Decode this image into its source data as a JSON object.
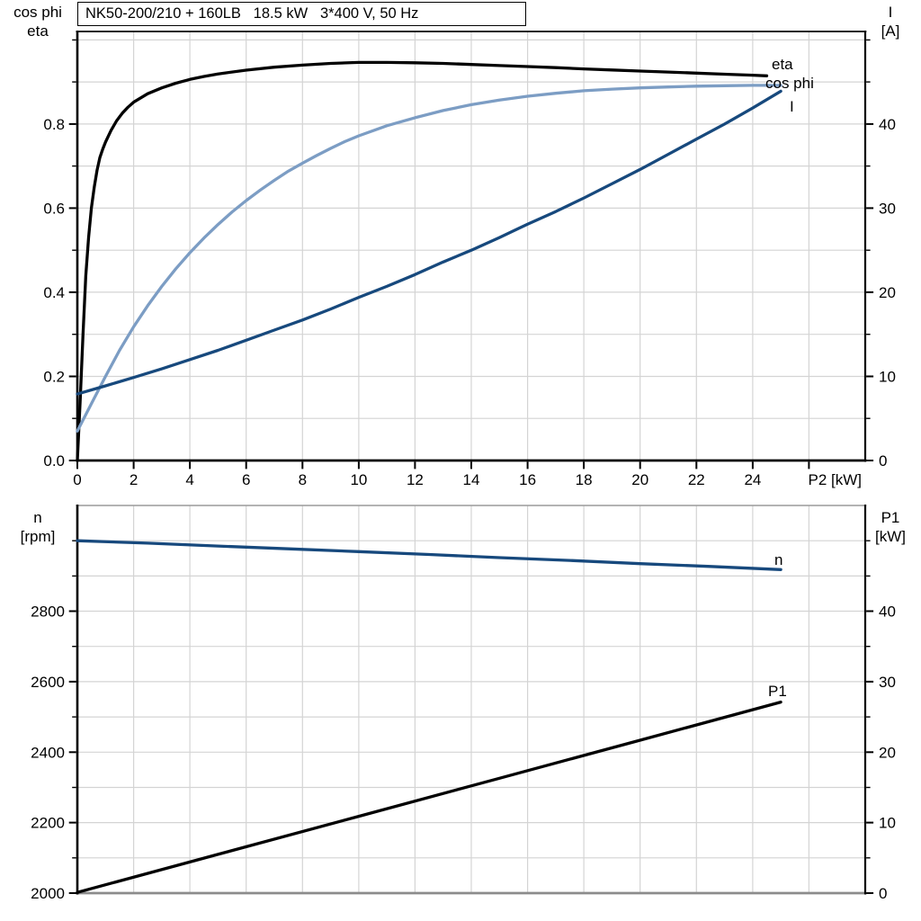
{
  "title_box": {
    "text": "NK50-200/210 + 160LB   18.5 kW   3*400 V, 50 Hz"
  },
  "corner_labels": {
    "top_left_line1": "cos phi",
    "top_left_line2": "eta",
    "top_right_line1": "I",
    "top_right_line2": "[A]",
    "bottom_left_line1": "n",
    "bottom_left_line2": "[rpm]",
    "bottom_right_line1": "P1",
    "bottom_right_line2": "[kW]"
  },
  "colors": {
    "black": "#000000",
    "light_blue": "#7c9dc4",
    "dark_blue": "#17497d",
    "grid": "#d4d4d4",
    "axis_gray": "#8c8c8c",
    "top_border_gray": "#9a9a9a"
  },
  "chart_data": [
    {
      "type": "line",
      "title": "NK50-200/210 + 160LB   18.5 kW   3*400 V, 50 Hz",
      "xlabel": "P2 [kW]",
      "ylabel_left": "cos phi / eta",
      "ylabel_right": "I [A]",
      "xlim": [
        0,
        28
      ],
      "ylim_left": [
        0,
        1.02
      ],
      "ylim_right": [
        0,
        51
      ],
      "grid": true,
      "grid_x_step": 2,
      "grid_y_left_step": 0.1,
      "x_major_ticks": [
        0,
        2,
        4,
        6,
        8,
        10,
        12,
        14,
        16,
        18,
        20,
        22,
        24,
        26
      ],
      "x_tick_labels": [
        "0",
        "2",
        "4",
        "6",
        "8",
        "10",
        "12",
        "14",
        "16",
        "18",
        "20",
        "22",
        "24",
        ""
      ],
      "y_left_major": [
        0,
        0.2,
        0.4,
        0.6,
        0.8
      ],
      "y_left_labels": [
        "0.0",
        "0.2",
        "0.4",
        "0.6",
        "0.8"
      ],
      "y_left_minor_step": 0.1,
      "y_right_major": [
        0,
        10,
        20,
        30,
        40
      ],
      "y_right_labels": [
        "0",
        "10",
        "20",
        "30",
        "40"
      ],
      "y_right_minor_step": 5,
      "series": [
        {
          "name": "eta",
          "label": "eta",
          "axis": "left",
          "color_key": "black",
          "points": [
            [
              0,
              0
            ],
            [
              0.1,
              0.14
            ],
            [
              0.2,
              0.3
            ],
            [
              0.3,
              0.44
            ],
            [
              0.4,
              0.53
            ],
            [
              0.5,
              0.6
            ],
            [
              0.6,
              0.65
            ],
            [
              0.7,
              0.69
            ],
            [
              0.8,
              0.72
            ],
            [
              0.9,
              0.74
            ],
            [
              1,
              0.757
            ],
            [
              1.2,
              0.785
            ],
            [
              1.4,
              0.808
            ],
            [
              1.6,
              0.826
            ],
            [
              1.8,
              0.84
            ],
            [
              2,
              0.852
            ],
            [
              2.5,
              0.872
            ],
            [
              3,
              0.886
            ],
            [
              3.5,
              0.897
            ],
            [
              4,
              0.906
            ],
            [
              4.5,
              0.913
            ],
            [
              5,
              0.919
            ],
            [
              6,
              0.928
            ],
            [
              7,
              0.935
            ],
            [
              8,
              0.94
            ],
            [
              9,
              0.944
            ],
            [
              10,
              0.9465
            ],
            [
              11,
              0.9465
            ],
            [
              12,
              0.9455
            ],
            [
              13,
              0.944
            ],
            [
              14,
              0.9415
            ],
            [
              15,
              0.939
            ],
            [
              16,
              0.9365
            ],
            [
              17,
              0.934
            ],
            [
              18,
              0.931
            ],
            [
              19,
              0.9285
            ],
            [
              20,
              0.926
            ],
            [
              21,
              0.9235
            ],
            [
              22,
              0.921
            ],
            [
              23,
              0.9185
            ],
            [
              24,
              0.916
            ],
            [
              24.5,
              0.9145
            ]
          ]
        },
        {
          "name": "cos-phi",
          "label": "cos phi",
          "axis": "left",
          "color_key": "light_blue",
          "points": [
            [
              0,
              0.07
            ],
            [
              0.5,
              0.135
            ],
            [
              1,
              0.2
            ],
            [
              1.5,
              0.262
            ],
            [
              2,
              0.318
            ],
            [
              2.5,
              0.368
            ],
            [
              3,
              0.414
            ],
            [
              3.5,
              0.456
            ],
            [
              4,
              0.494
            ],
            [
              4.5,
              0.529
            ],
            [
              5,
              0.561
            ],
            [
              5.5,
              0.591
            ],
            [
              6,
              0.618
            ],
            [
              6.5,
              0.643
            ],
            [
              7,
              0.666
            ],
            [
              7.5,
              0.688
            ],
            [
              8,
              0.707
            ],
            [
              8.5,
              0.725
            ],
            [
              9,
              0.742
            ],
            [
              9.5,
              0.758
            ],
            [
              10,
              0.772
            ],
            [
              11,
              0.796
            ],
            [
              12,
              0.815
            ],
            [
              13,
              0.832
            ],
            [
              14,
              0.846
            ],
            [
              15,
              0.857
            ],
            [
              16,
              0.866
            ],
            [
              17,
              0.873
            ],
            [
              18,
              0.879
            ],
            [
              19,
              0.883
            ],
            [
              20,
              0.886
            ],
            [
              21,
              0.888
            ],
            [
              22,
              0.89
            ],
            [
              23,
              0.891
            ],
            [
              24,
              0.892
            ],
            [
              25,
              0.892
            ]
          ]
        },
        {
          "name": "I",
          "label": "I",
          "axis": "right",
          "color_key": "dark_blue",
          "points": [
            [
              0,
              7.9
            ],
            [
              1,
              8.87
            ],
            [
              2,
              9.87
            ],
            [
              3,
              10.9
            ],
            [
              4,
              12.0
            ],
            [
              5,
              13.1
            ],
            [
              6,
              14.3
            ],
            [
              7,
              15.5
            ],
            [
              8,
              16.7
            ],
            [
              9,
              18.0
            ],
            [
              10,
              19.4
            ],
            [
              11,
              20.7
            ],
            [
              12,
              22.1
            ],
            [
              13,
              23.6
            ],
            [
              14,
              25.0
            ],
            [
              15,
              26.5
            ],
            [
              16,
              28.1
            ],
            [
              17,
              29.6
            ],
            [
              18,
              31.2
            ],
            [
              19,
              32.9
            ],
            [
              20,
              34.6
            ],
            [
              21,
              36.4
            ],
            [
              22,
              38.2
            ],
            [
              23,
              40.0
            ],
            [
              24,
              41.9
            ],
            [
              25,
              43.9
            ]
          ]
        }
      ]
    },
    {
      "type": "line",
      "title": "",
      "xlabel": "",
      "ylabel_left": "n [rpm]",
      "ylabel_right": "P1 [kW]",
      "xlim": [
        0,
        28
      ],
      "ylim_left": [
        2000,
        3100
      ],
      "ylim_right": [
        0,
        55
      ],
      "grid": true,
      "grid_x_step": 2,
      "grid_y_left_step": 100,
      "x_major_ticks": [],
      "x_tick_labels": [],
      "y_left_major": [
        2000,
        2200,
        2400,
        2600,
        2800
      ],
      "y_left_labels": [
        "2000",
        "2200",
        "2400",
        "2600",
        "2800"
      ],
      "y_left_minor_step": 100,
      "y_right_major": [
        0,
        10,
        20,
        30,
        40
      ],
      "y_right_labels": [
        "0",
        "10",
        "20",
        "30",
        "40"
      ],
      "y_right_minor_step": 5,
      "series": [
        {
          "name": "n",
          "label": "n",
          "axis": "left",
          "color_key": "dark_blue",
          "points": [
            [
              0,
              3000
            ],
            [
              2.5,
              2993
            ],
            [
              5,
              2985
            ],
            [
              7.5,
              2977
            ],
            [
              10,
              2969
            ],
            [
              12.5,
              2961
            ],
            [
              15,
              2952
            ],
            [
              17.5,
              2944
            ],
            [
              20,
              2935
            ],
            [
              22.5,
              2927
            ],
            [
              25,
              2918
            ]
          ]
        },
        {
          "name": "P1",
          "label": "P1",
          "axis": "right",
          "color_key": "black",
          "points": [
            [
              0,
              0.1
            ],
            [
              5,
              5.5
            ],
            [
              10,
              10.9
            ],
            [
              15,
              16.3
            ],
            [
              20,
              21.7
            ],
            [
              25,
              27.1
            ]
          ]
        }
      ]
    }
  ]
}
